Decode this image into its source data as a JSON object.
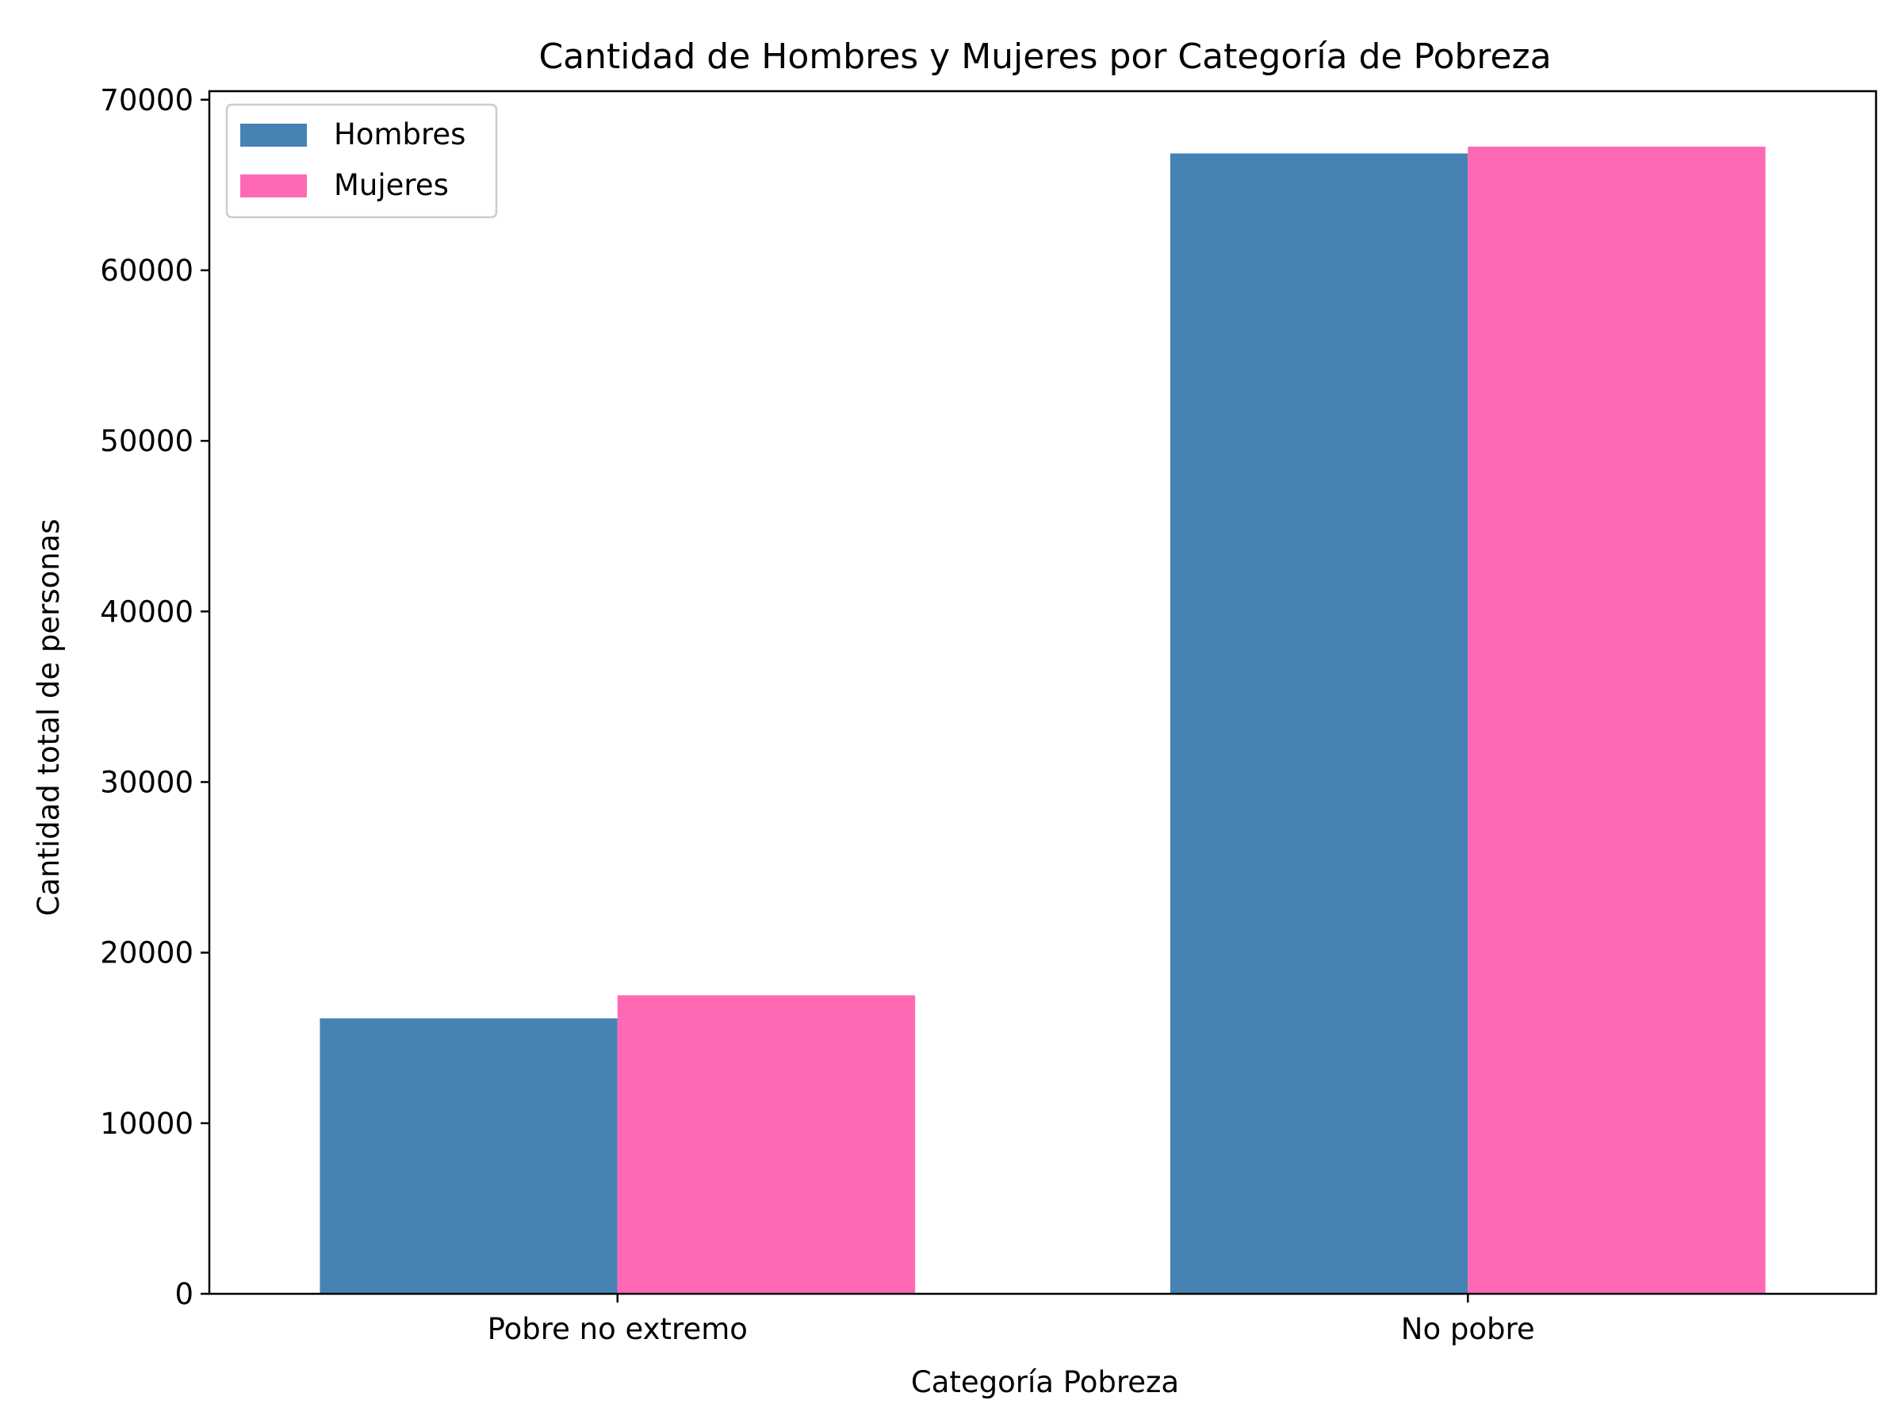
{
  "chart_data": {
    "type": "bar",
    "title": "Cantidad de Hombres y Mujeres por Categoría de Pobreza",
    "xlabel": "Categoría Pobreza",
    "ylabel": "Cantidad total de personas",
    "categories": [
      "Pobre no extremo",
      "No pobre"
    ],
    "series": [
      {
        "name": "Hombres",
        "values": [
          16150,
          66850
        ],
        "color": "#4682b4"
      },
      {
        "name": "Mujeres",
        "values": [
          17500,
          67250
        ],
        "color": "#ff69b4"
      }
    ],
    "ylim": [
      0,
      70500
    ],
    "yticks": [
      0,
      10000,
      20000,
      30000,
      40000,
      50000,
      60000,
      70000
    ],
    "legend": "top-left",
    "grid": false
  }
}
